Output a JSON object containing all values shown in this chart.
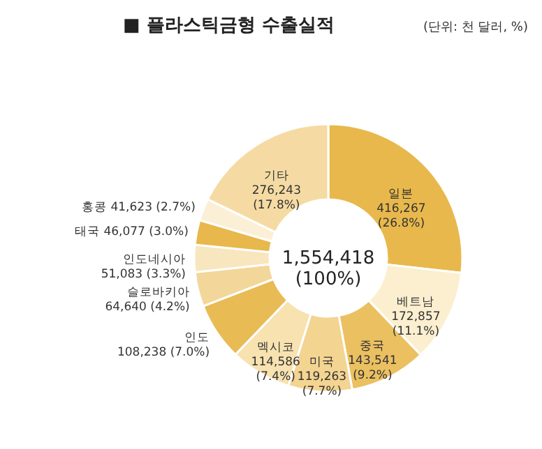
{
  "chart_data": {
    "type": "donut",
    "title": "■ 플라스틱금형 수출실적",
    "subtitle": "(단위: 천 달러, %)",
    "categories": [
      "일본",
      "베트남",
      "중국",
      "미국",
      "멕시코",
      "인도",
      "슬로바키아",
      "인도네시아",
      "태국",
      "홍콩",
      "기타"
    ],
    "values": [
      416267,
      172857,
      143541,
      119263,
      114586,
      108238,
      64640,
      51083,
      46077,
      41623,
      276243
    ],
    "value_labels": [
      "416,267 (26.8%)",
      "172,857 (11.1%)",
      "143,541 (9.2%)",
      "119,263 (7.7%)",
      "114,586 (7.4%)",
      "108,238 (7.0%)",
      "64,640 (4.2%)",
      "51,083 (3.3%)",
      "46,077 (3.0%)",
      "41,623 (2.7%)",
      "276,243 (17.8%)"
    ],
    "colors": [
      "#e8b84c",
      "#fbefd0",
      "#ebc061",
      "#f3d491",
      "#f7e2b0",
      "#e9bb55",
      "#f3d699",
      "#f8e6bf",
      "#e8b84c",
      "#fbf0d6",
      "#f5dba3"
    ],
    "annotations": [
      "1,554,418 (100%)"
    ]
  }
}
